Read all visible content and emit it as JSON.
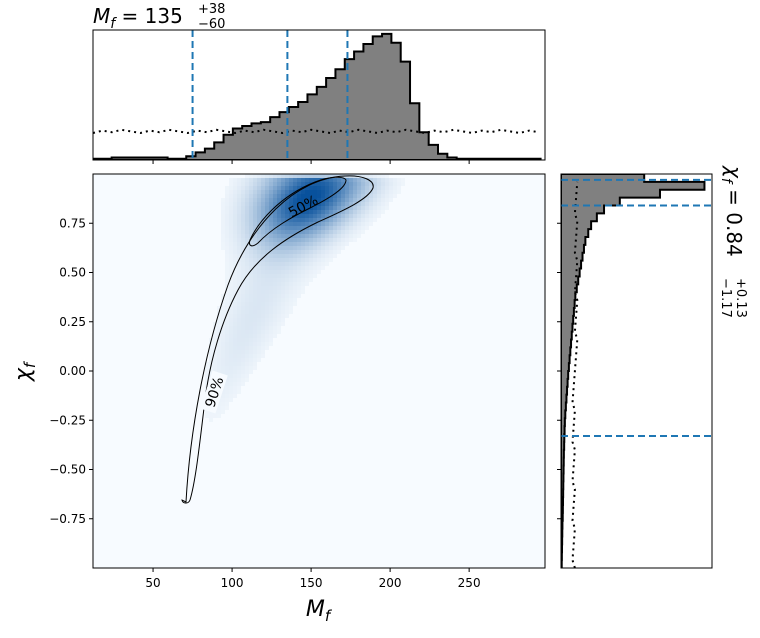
{
  "chart_data": {
    "type": "corner",
    "x_param": {
      "label_symbol": "M",
      "label_subscript": "f",
      "summary": {
        "title_prefix": "M",
        "title_sub": "f",
        "title_eq": " = 135",
        "sup": "+38",
        "sub": "−60",
        "median": 135,
        "lower": 75,
        "upper": 173
      },
      "range": [
        12,
        298
      ],
      "ticks": [
        50,
        100,
        150,
        200,
        250
      ],
      "tick_labels": [
        "50",
        "100",
        "150",
        "200",
        "250"
      ]
    },
    "y_param": {
      "label_symbol": "χ",
      "label_subscript": "f",
      "summary": {
        "title_prefix": "χ",
        "title_sub": "f",
        "title_eq": " = 0.84",
        "sup": "+0.13",
        "sub": "−1.17",
        "median": 0.84,
        "lower": -0.33,
        "upper": 0.97
      },
      "range": [
        -1,
        1
      ],
      "ticks": [
        -0.75,
        -0.5,
        -0.25,
        0,
        0.25,
        0.5,
        0.75
      ],
      "tick_labels": [
        "−0.75",
        "−0.50",
        "−0.25",
        "0.00",
        "0.25",
        "0.50",
        "0.75"
      ]
    },
    "contours": [
      {
        "level": "50%",
        "label": "50%"
      },
      {
        "level": "90%",
        "label": "90%"
      }
    ],
    "x_histogram": {
      "bin_start": 12,
      "bin_width": 5.9,
      "counts": [
        0.01,
        0.01,
        0.02,
        0.02,
        0.02,
        0.02,
        0.02,
        0.02,
        0.01,
        0.01,
        0.03,
        0.06,
        0.09,
        0.14,
        0.2,
        0.25,
        0.27,
        0.29,
        0.3,
        0.34,
        0.38,
        0.42,
        0.46,
        0.52,
        0.58,
        0.65,
        0.72,
        0.8,
        0.86,
        0.92,
        0.98,
        1.0,
        0.93,
        0.78,
        0.45,
        0.22,
        0.12,
        0.05,
        0.02,
        0.01,
        0.01,
        0.01,
        0.01,
        0.01,
        0.01,
        0.01,
        0.01,
        0.01
      ]
    },
    "y_histogram": {
      "bin_start": -1,
      "bin_width": 0.04,
      "counts": [
        0.005,
        0.006,
        0.007,
        0.008,
        0.009,
        0.01,
        0.012,
        0.013,
        0.014,
        0.015,
        0.016,
        0.017,
        0.018,
        0.019,
        0.02,
        0.022,
        0.023,
        0.025,
        0.027,
        0.03,
        0.034,
        0.038,
        0.042,
        0.046,
        0.05,
        0.055,
        0.06,
        0.065,
        0.07,
        0.075,
        0.08,
        0.085,
        0.09,
        0.095,
        0.1,
        0.11,
        0.12,
        0.13,
        0.14,
        0.15,
        0.16,
        0.17,
        0.19,
        0.21,
        0.25,
        0.3,
        0.41,
        0.69,
        1.0,
        0.58
      ]
    },
    "prior_x_level": 0.22,
    "prior_y_level": 0.1,
    "colors": {
      "hist_fill": "#808080",
      "quantile_line": "#1f77b4",
      "density": "#08519c"
    }
  }
}
